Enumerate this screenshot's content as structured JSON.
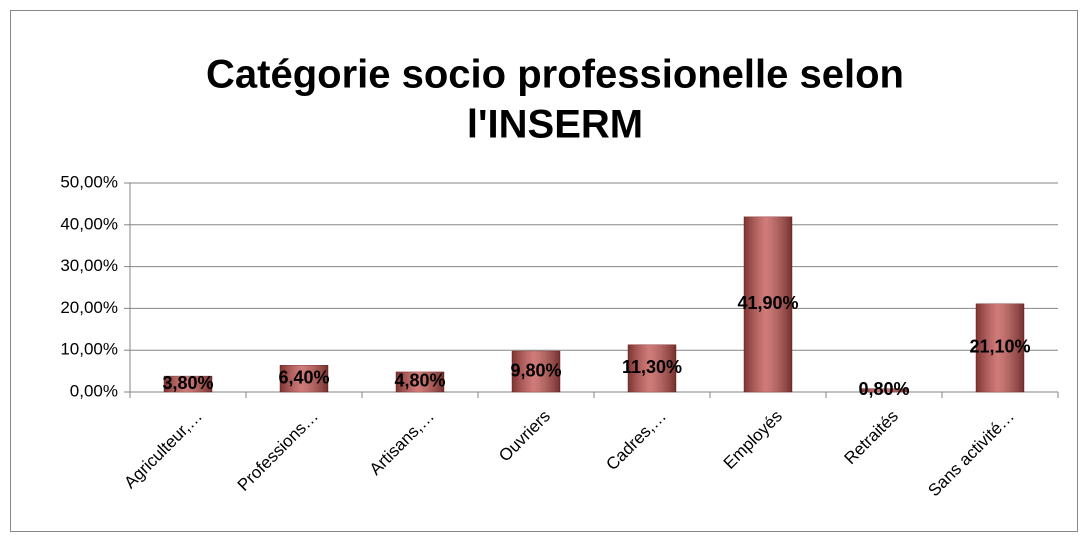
{
  "chart_data": {
    "type": "bar",
    "title": [
      "Catégorie socio professionelle selon",
      "l'INSERM"
    ],
    "categories": [
      "Agriculteur,…",
      "Professions…",
      "Artisans,…",
      "Ouvriers",
      "Cadres,…",
      "Employés",
      "Retraités",
      "Sans activité…"
    ],
    "values": [
      3.8,
      6.4,
      4.8,
      9.8,
      11.3,
      41.9,
      0.8,
      21.1
    ],
    "value_labels": [
      "3,80%",
      "6,40%",
      "4,80%",
      "9,80%",
      "11,30%",
      "41,90%",
      "0,80%",
      "21,10%"
    ],
    "color": "#c0504d",
    "ylim": [
      0,
      50
    ],
    "yticks": [
      {
        "value": 0,
        "label": "0,00%"
      },
      {
        "value": 10,
        "label": "10,00%"
      },
      {
        "value": 20,
        "label": "20,00%"
      },
      {
        "value": 30,
        "label": "30,00%"
      },
      {
        "value": 40,
        "label": "40,00%"
      },
      {
        "value": 50,
        "label": "50,00%"
      }
    ],
    "grid": true
  }
}
